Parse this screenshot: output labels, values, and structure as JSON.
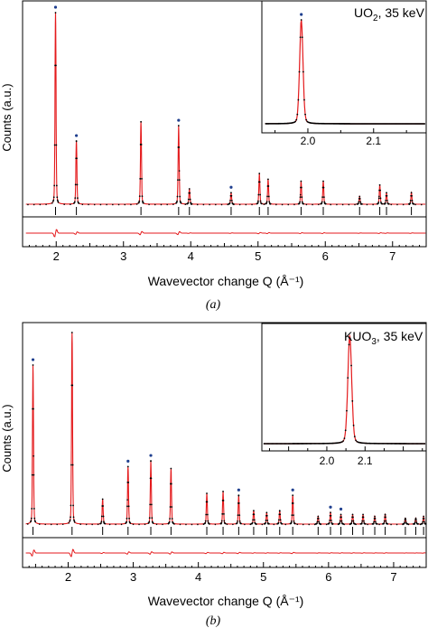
{
  "chart_data": [
    {
      "type": "line",
      "panel": "(a)",
      "caption": "(a)",
      "xlabel": "Wavevector change Q  (Å⁻¹)",
      "ylabel": "Counts (a.u.)",
      "xlim": [
        1.5,
        7.5
      ],
      "xticks": [
        "2",
        "3",
        "4",
        "5",
        "6",
        "7"
      ],
      "colors": {
        "fit": "#e41a1c",
        "data": "#000000",
        "marker": "#1f3f8f"
      },
      "peaks": [
        {
          "q": 1.99,
          "h": 1.0,
          "marked": true
        },
        {
          "q": 2.3,
          "h": 0.33,
          "marked": true
        },
        {
          "q": 3.26,
          "h": 0.43,
          "marked": false
        },
        {
          "q": 3.82,
          "h": 0.41,
          "marked": true
        },
        {
          "q": 3.98,
          "h": 0.08,
          "marked": false
        },
        {
          "q": 4.6,
          "h": 0.06,
          "marked": true
        },
        {
          "q": 5.02,
          "h": 0.16,
          "marked": false
        },
        {
          "q": 5.15,
          "h": 0.13,
          "marked": false
        },
        {
          "q": 5.64,
          "h": 0.12,
          "marked": false
        },
        {
          "q": 5.97,
          "h": 0.12,
          "marked": false
        },
        {
          "q": 6.51,
          "h": 0.04,
          "marked": false
        },
        {
          "q": 6.81,
          "h": 0.1,
          "marked": false
        },
        {
          "q": 6.91,
          "h": 0.06,
          "marked": false
        },
        {
          "q": 7.28,
          "h": 0.06,
          "marked": false
        }
      ],
      "reflection_ticks": [
        1.99,
        2.3,
        3.26,
        3.82,
        3.98,
        4.6,
        5.02,
        5.15,
        5.64,
        5.97,
        6.51,
        6.81,
        6.91,
        7.28
      ],
      "inset": {
        "title_main": "UO",
        "title_sub": "2",
        "title_rest": ", 35 keV",
        "xlim": [
          1.93,
          2.18
        ],
        "xticks": [
          "2.0",
          "2.1"
        ],
        "peak_center": 1.99,
        "marked": true
      }
    },
    {
      "type": "line",
      "panel": "(b)",
      "caption": "(b)",
      "xlabel": "Wavevector change Q  (Å⁻¹)",
      "ylabel": "Counts (a.u.)",
      "xlim": [
        1.3,
        7.5
      ],
      "xticks": [
        "2",
        "3",
        "4",
        "5",
        "6",
        "7"
      ],
      "colors": {
        "fit": "#e41a1c",
        "data": "#000000",
        "marker": "#1f3f8f"
      },
      "peaks": [
        {
          "q": 1.46,
          "h": 0.83,
          "marked": true
        },
        {
          "q": 2.06,
          "h": 1.0,
          "marked": false
        },
        {
          "q": 2.53,
          "h": 0.13,
          "marked": false
        },
        {
          "q": 2.92,
          "h": 0.3,
          "marked": true
        },
        {
          "q": 3.27,
          "h": 0.33,
          "marked": true
        },
        {
          "q": 3.58,
          "h": 0.29,
          "marked": false
        },
        {
          "q": 4.13,
          "h": 0.16,
          "marked": false
        },
        {
          "q": 4.38,
          "h": 0.17,
          "marked": false
        },
        {
          "q": 4.62,
          "h": 0.15,
          "marked": true
        },
        {
          "q": 4.85,
          "h": 0.07,
          "marked": false
        },
        {
          "q": 5.05,
          "h": 0.06,
          "marked": false
        },
        {
          "q": 5.25,
          "h": 0.07,
          "marked": false
        },
        {
          "q": 5.45,
          "h": 0.15,
          "marked": true
        },
        {
          "q": 5.84,
          "h": 0.04,
          "marked": false
        },
        {
          "q": 6.03,
          "h": 0.06,
          "marked": true
        },
        {
          "q": 6.19,
          "h": 0.05,
          "marked": true
        },
        {
          "q": 6.37,
          "h": 0.05,
          "marked": false
        },
        {
          "q": 6.53,
          "h": 0.05,
          "marked": false
        },
        {
          "q": 6.71,
          "h": 0.04,
          "marked": false
        },
        {
          "q": 6.87,
          "h": 0.05,
          "marked": false
        },
        {
          "q": 7.18,
          "h": 0.03,
          "marked": false
        },
        {
          "q": 7.34,
          "h": 0.03,
          "marked": false
        },
        {
          "q": 7.46,
          "h": 0.04,
          "marked": false
        }
      ],
      "reflection_ticks": [
        1.46,
        2.06,
        2.53,
        2.92,
        3.27,
        3.58,
        4.13,
        4.38,
        4.62,
        4.85,
        5.05,
        5.25,
        5.45,
        5.84,
        6.03,
        6.19,
        6.37,
        6.53,
        6.71,
        6.87,
        7.18,
        7.34,
        7.46
      ],
      "inset": {
        "title_main": "KUO",
        "title_sub": "3",
        "title_rest": ", 35 keV",
        "xlim": [
          1.83,
          2.26
        ],
        "xticks": [
          "2.0",
          "2.1"
        ],
        "peak_center": 2.06,
        "marked": false
      }
    }
  ]
}
